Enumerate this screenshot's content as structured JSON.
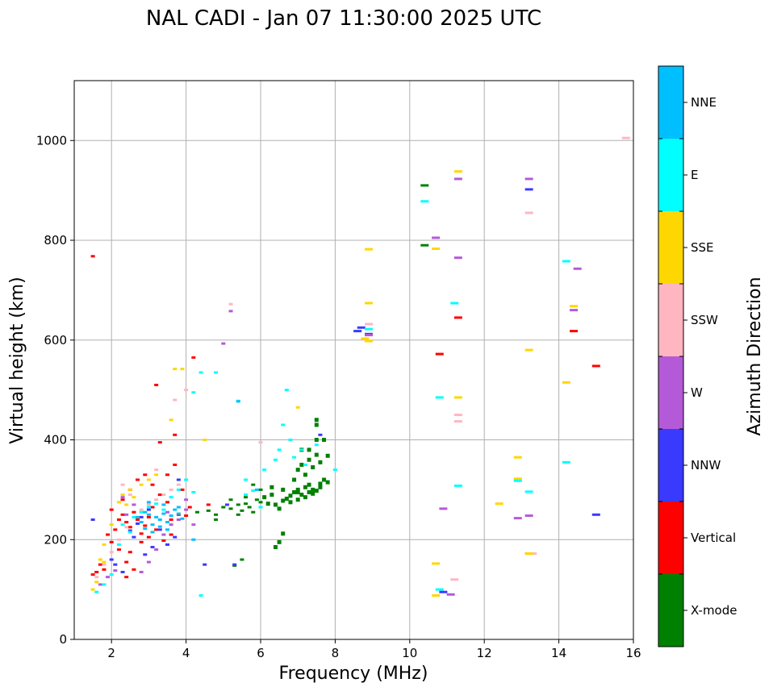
{
  "chart_data": {
    "type": "scatter",
    "title": "NAL CADI - Jan 07 11:30:00 2025 UTC",
    "xlabel": "Frequency (MHz)",
    "ylabel": "Virtual height (km)",
    "xlim": [
      1,
      16
    ],
    "ylim": [
      0,
      1120
    ],
    "xticks": [
      2,
      4,
      6,
      8,
      10,
      12,
      14,
      16
    ],
    "yticks": [
      0,
      200,
      400,
      600,
      800,
      1000
    ],
    "grid": true,
    "colorbar": {
      "label": "Azimuth Direction",
      "categories": [
        "X-mode",
        "Vertical",
        "NNW",
        "W",
        "SSW",
        "SSE",
        "E",
        "NNE"
      ],
      "colors": [
        "#008000",
        "#ff0000",
        "#3a3aff",
        "#b45ad8",
        "#ffb6c1",
        "#ffd700",
        "#00ffff",
        "#00bfff"
      ]
    },
    "series": [
      {
        "name": "X-mode",
        "points": [
          [
            4.3,
            255
          ],
          [
            4.6,
            258
          ],
          [
            4.8,
            250
          ],
          [
            5.0,
            265
          ],
          [
            5.2,
            262
          ],
          [
            5.4,
            270
          ],
          [
            5.5,
            258
          ],
          [
            5.6,
            272
          ],
          [
            5.7,
            265
          ],
          [
            5.8,
            255
          ],
          [
            5.9,
            280
          ],
          [
            6.0,
            275
          ],
          [
            6.1,
            285
          ],
          [
            6.2,
            272
          ],
          [
            6.3,
            290
          ],
          [
            6.4,
            270
          ],
          [
            6.5,
            262
          ],
          [
            6.6,
            278
          ],
          [
            6.7,
            282
          ],
          [
            6.8,
            288
          ],
          [
            6.9,
            295
          ],
          [
            7.0,
            300
          ],
          [
            7.1,
            290
          ],
          [
            7.2,
            305
          ],
          [
            7.3,
            310
          ],
          [
            7.4,
            300
          ],
          [
            7.5,
            298
          ],
          [
            7.6,
            312
          ],
          [
            7.7,
            320
          ],
          [
            7.8,
            315
          ],
          [
            7.0,
            280
          ],
          [
            7.2,
            285
          ],
          [
            7.4,
            292
          ],
          [
            7.6,
            305
          ],
          [
            6.8,
            275
          ],
          [
            7.0,
            295
          ],
          [
            7.3,
            295
          ],
          [
            7.1,
            350
          ],
          [
            7.3,
            360
          ],
          [
            7.5,
            370
          ],
          [
            7.3,
            380
          ],
          [
            7.5,
            400
          ],
          [
            7.7,
            400
          ],
          [
            7.5,
            430
          ],
          [
            7.5,
            440
          ],
          [
            7.1,
            380
          ],
          [
            7.2,
            330
          ],
          [
            6.9,
            320
          ],
          [
            6.6,
            300
          ],
          [
            6.3,
            305
          ],
          [
            6.0,
            300
          ],
          [
            5.6,
            285
          ],
          [
            6.5,
            195
          ],
          [
            6.6,
            212
          ],
          [
            6.4,
            185
          ],
          [
            5.3,
            148
          ],
          [
            5.5,
            160
          ],
          [
            4.8,
            240
          ],
          [
            5.2,
            280
          ],
          [
            5.8,
            310
          ],
          [
            7.0,
            340
          ],
          [
            7.4,
            345
          ],
          [
            7.8,
            368
          ],
          [
            7.6,
            355
          ],
          [
            5.4,
            250
          ],
          [
            10.4,
            910
          ],
          [
            10.4,
            790
          ]
        ]
      },
      {
        "name": "Vertical",
        "points": [
          [
            1.5,
            130
          ],
          [
            1.6,
            135
          ],
          [
            1.7,
            150
          ],
          [
            1.8,
            140
          ],
          [
            2.0,
            195
          ],
          [
            2.1,
            220
          ],
          [
            2.2,
            240
          ],
          [
            2.3,
            250
          ],
          [
            2.4,
            235
          ],
          [
            2.5,
            225
          ],
          [
            2.6,
            255
          ],
          [
            2.7,
            240
          ],
          [
            2.8,
            212
          ],
          [
            2.9,
            228
          ],
          [
            3.0,
            205
          ],
          [
            3.2,
            220
          ],
          [
            3.4,
            198
          ],
          [
            3.6,
            210
          ],
          [
            3.8,
            250
          ],
          [
            4.0,
            248
          ],
          [
            2.3,
            280
          ],
          [
            2.5,
            300
          ],
          [
            2.7,
            320
          ],
          [
            2.9,
            330
          ],
          [
            3.1,
            310
          ],
          [
            3.3,
            290
          ],
          [
            3.5,
            330
          ],
          [
            3.7,
            350
          ],
          [
            3.9,
            300
          ],
          [
            4.1,
            265
          ],
          [
            4.2,
            565
          ],
          [
            3.2,
            510
          ],
          [
            3.3,
            395
          ],
          [
            3.7,
            410
          ],
          [
            2.2,
            180
          ],
          [
            2.4,
            155
          ],
          [
            2.5,
            175
          ],
          [
            1.9,
            210
          ],
          [
            2.6,
            140
          ],
          [
            3.1,
            265
          ],
          [
            3.5,
            275
          ],
          [
            10.8,
            572
          ],
          [
            11.3,
            645
          ],
          [
            14.4,
            618
          ],
          [
            15.0,
            548
          ],
          [
            4.6,
            270
          ],
          [
            2.0,
            260
          ],
          [
            1.5,
            768
          ],
          [
            2.4,
            125
          ],
          [
            2.8,
            195
          ],
          [
            3.0,
            245
          ],
          [
            3.6,
            240
          ]
        ]
      },
      {
        "name": "NNW",
        "points": [
          [
            1.5,
            240
          ],
          [
            2.0,
            160
          ],
          [
            2.1,
            150
          ],
          [
            2.3,
            135
          ],
          [
            2.5,
            218
          ],
          [
            2.7,
            232
          ],
          [
            2.9,
            170
          ],
          [
            3.1,
            185
          ],
          [
            3.3,
            220
          ],
          [
            3.5,
            190
          ],
          [
            3.7,
            205
          ],
          [
            3.8,
            320
          ],
          [
            4.5,
            150
          ],
          [
            5.1,
            270
          ],
          [
            5.3,
            150
          ],
          [
            7.6,
            410
          ],
          [
            8.7,
            625
          ],
          [
            8.6,
            618
          ],
          [
            8.9,
            612
          ],
          [
            10.9,
            95
          ],
          [
            13.2,
            902
          ],
          [
            15.0,
            250
          ],
          [
            3.0,
            260
          ],
          [
            2.6,
            205
          ],
          [
            2.8,
            245
          ]
        ]
      },
      {
        "name": "W",
        "points": [
          [
            1.7,
            110
          ],
          [
            1.9,
            125
          ],
          [
            2.1,
            138
          ],
          [
            2.4,
            250
          ],
          [
            2.6,
            270
          ],
          [
            2.8,
            135
          ],
          [
            3.0,
            155
          ],
          [
            3.2,
            180
          ],
          [
            3.4,
            210
          ],
          [
            3.6,
            230
          ],
          [
            3.8,
            240
          ],
          [
            4.0,
            260
          ],
          [
            4.0,
            280
          ],
          [
            4.2,
            230
          ],
          [
            5.0,
            593
          ],
          [
            5.2,
            658
          ],
          [
            8.9,
            610
          ],
          [
            10.7,
            805
          ],
          [
            10.9,
            262
          ],
          [
            11.1,
            90
          ],
          [
            11.3,
            923
          ],
          [
            11.3,
            765
          ],
          [
            13.2,
            923
          ],
          [
            12.9,
            243
          ],
          [
            13.2,
            248
          ],
          [
            14.4,
            660
          ],
          [
            14.5,
            743
          ],
          [
            13.2,
            172
          ],
          [
            2.3,
            285
          ],
          [
            3.5,
            255
          ]
        ]
      },
      {
        "name": "SSW",
        "points": [
          [
            1.6,
            125
          ],
          [
            1.8,
            150
          ],
          [
            2.0,
            175
          ],
          [
            2.2,
            200
          ],
          [
            2.4,
            225
          ],
          [
            2.6,
            245
          ],
          [
            2.8,
            260
          ],
          [
            3.0,
            270
          ],
          [
            3.2,
            280
          ],
          [
            3.4,
            290
          ],
          [
            3.6,
            300
          ],
          [
            3.8,
            310
          ],
          [
            4.0,
            500
          ],
          [
            3.7,
            480
          ],
          [
            5.2,
            672
          ],
          [
            6.0,
            395
          ],
          [
            8.9,
            632
          ],
          [
            11.2,
            120
          ],
          [
            11.3,
            450
          ],
          [
            11.3,
            437
          ],
          [
            13.2,
            855
          ],
          [
            13.3,
            172
          ],
          [
            15.8,
            1005
          ],
          [
            2.3,
            310
          ],
          [
            2.5,
            290
          ],
          [
            3.2,
            340
          ]
        ]
      },
      {
        "name": "SSE",
        "points": [
          [
            1.5,
            100
          ],
          [
            1.6,
            115
          ],
          [
            1.7,
            160
          ],
          [
            1.8,
            190
          ],
          [
            2.0,
            230
          ],
          [
            2.2,
            275
          ],
          [
            2.3,
            290
          ],
          [
            2.5,
            300
          ],
          [
            2.6,
            285
          ],
          [
            2.8,
            310
          ],
          [
            3.0,
            320
          ],
          [
            3.2,
            330
          ],
          [
            3.6,
            440
          ],
          [
            3.7,
            542
          ],
          [
            3.9,
            542
          ],
          [
            4.5,
            400
          ],
          [
            8.9,
            782
          ],
          [
            8.9,
            674
          ],
          [
            8.9,
            598
          ],
          [
            8.8,
            603
          ],
          [
            10.7,
            152
          ],
          [
            10.7,
            783
          ],
          [
            10.7,
            88
          ],
          [
            11.3,
            938
          ],
          [
            11.3,
            485
          ],
          [
            12.4,
            272
          ],
          [
            12.9,
            365
          ],
          [
            12.9,
            322
          ],
          [
            13.2,
            172
          ],
          [
            13.2,
            580
          ],
          [
            14.2,
            515
          ],
          [
            14.4,
            668
          ],
          [
            7.0,
            465
          ],
          [
            2.4,
            270
          ],
          [
            1.8,
            155
          ]
        ]
      },
      {
        "name": "E",
        "points": [
          [
            1.6,
            95
          ],
          [
            1.8,
            110
          ],
          [
            2.0,
            130
          ],
          [
            2.2,
            190
          ],
          [
            2.3,
            230
          ],
          [
            2.6,
            245
          ],
          [
            2.8,
            255
          ],
          [
            3.0,
            265
          ],
          [
            3.2,
            272
          ],
          [
            3.4,
            260
          ],
          [
            3.6,
            285
          ],
          [
            3.8,
            300
          ],
          [
            4.0,
            320
          ],
          [
            4.2,
            295
          ],
          [
            4.4,
            535
          ],
          [
            4.2,
            495
          ],
          [
            4.4,
            88
          ],
          [
            4.8,
            535
          ],
          [
            5.4,
            478
          ],
          [
            5.6,
            290
          ],
          [
            6.1,
            340
          ],
          [
            6.4,
            360
          ],
          [
            6.6,
            430
          ],
          [
            6.7,
            500
          ],
          [
            6.5,
            380
          ],
          [
            6.8,
            400
          ],
          [
            7.1,
            380
          ],
          [
            7.5,
            390
          ],
          [
            8.0,
            340
          ],
          [
            7.2,
            350
          ],
          [
            6.9,
            365
          ],
          [
            8.9,
            622
          ],
          [
            10.4,
            878
          ],
          [
            10.8,
            485
          ],
          [
            10.8,
            100
          ],
          [
            11.2,
            674
          ],
          [
            11.3,
            308
          ],
          [
            12.9,
            318
          ],
          [
            13.2,
            296
          ],
          [
            14.2,
            758
          ],
          [
            14.2,
            355
          ],
          [
            5.6,
            320
          ],
          [
            5.8,
            298
          ],
          [
            6.0,
            265
          ],
          [
            2.5,
            215
          ]
        ]
      },
      {
        "name": "NNE",
        "points": [
          [
            2.8,
            235
          ],
          [
            2.9,
            255
          ],
          [
            3.0,
            250
          ],
          [
            3.1,
            230
          ],
          [
            3.2,
            245
          ],
          [
            3.3,
            240
          ],
          [
            3.4,
            252
          ],
          [
            3.5,
            235
          ],
          [
            3.6,
            248
          ],
          [
            3.7,
            260
          ],
          [
            3.8,
            252
          ],
          [
            3.9,
            242
          ],
          [
            2.9,
            222
          ],
          [
            3.1,
            215
          ],
          [
            3.3,
            226
          ],
          [
            3.5,
            220
          ],
          [
            2.7,
            245
          ],
          [
            4.2,
            200
          ],
          [
            5.4,
            477
          ],
          [
            5.9,
            300
          ],
          [
            3.0,
            275
          ],
          [
            3.4,
            270
          ],
          [
            3.8,
            265
          ]
        ]
      }
    ]
  }
}
